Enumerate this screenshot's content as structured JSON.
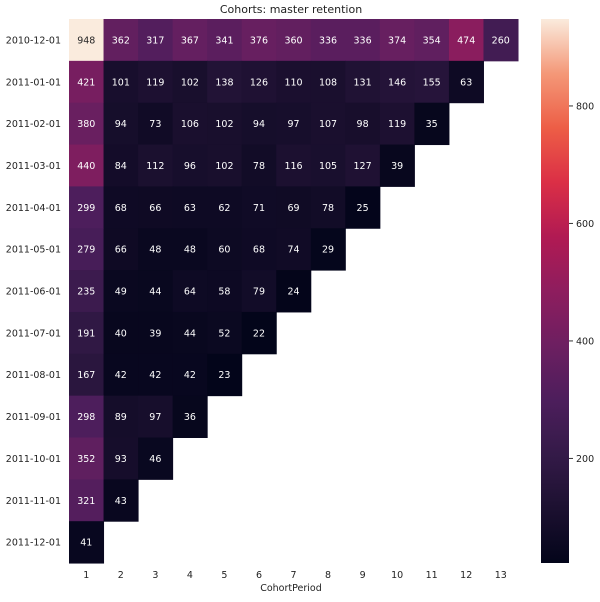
{
  "chart_data": {
    "type": "heatmap",
    "title": "Cohorts: master retention",
    "xlabel": "CohortPeriod",
    "ylabel": "",
    "x_categories": [
      "1",
      "2",
      "3",
      "4",
      "5",
      "6",
      "7",
      "8",
      "9",
      "10",
      "11",
      "12",
      "13"
    ],
    "y_categories": [
      "2010-12-01",
      "2011-01-01",
      "2011-02-01",
      "2011-03-01",
      "2011-04-01",
      "2011-05-01",
      "2011-06-01",
      "2011-07-01",
      "2011-08-01",
      "2011-09-01",
      "2011-10-01",
      "2011-11-01",
      "2011-12-01"
    ],
    "values": [
      [
        948,
        362,
        317,
        367,
        341,
        376,
        360,
        336,
        336,
        374,
        354,
        474,
        260
      ],
      [
        421,
        101,
        119,
        102,
        138,
        126,
        110,
        108,
        131,
        146,
        155,
        63,
        null
      ],
      [
        380,
        94,
        73,
        106,
        102,
        94,
        97,
        107,
        98,
        119,
        35,
        null,
        null
      ],
      [
        440,
        84,
        112,
        96,
        102,
        78,
        116,
        105,
        127,
        39,
        null,
        null,
        null
      ],
      [
        299,
        68,
        66,
        63,
        62,
        71,
        69,
        78,
        25,
        null,
        null,
        null,
        null
      ],
      [
        279,
        66,
        48,
        48,
        60,
        68,
        74,
        29,
        null,
        null,
        null,
        null,
        null
      ],
      [
        235,
        49,
        44,
        64,
        58,
        79,
        24,
        null,
        null,
        null,
        null,
        null,
        null
      ],
      [
        191,
        40,
        39,
        44,
        52,
        22,
        null,
        null,
        null,
        null,
        null,
        null,
        null
      ],
      [
        167,
        42,
        42,
        42,
        23,
        null,
        null,
        null,
        null,
        null,
        null,
        null,
        null
      ],
      [
        298,
        89,
        97,
        36,
        null,
        null,
        null,
        null,
        null,
        null,
        null,
        null,
        null
      ],
      [
        352,
        93,
        46,
        null,
        null,
        null,
        null,
        null,
        null,
        null,
        null,
        null,
        null
      ],
      [
        321,
        43,
        null,
        null,
        null,
        null,
        null,
        null,
        null,
        null,
        null,
        null,
        null
      ],
      [
        41,
        null,
        null,
        null,
        null,
        null,
        null,
        null,
        null,
        null,
        null,
        null,
        null
      ]
    ],
    "colorbar": {
      "colormap": "rocket",
      "vmin": 22,
      "vmax": 948,
      "ticks": [
        200,
        400,
        600,
        800
      ]
    },
    "annotations": "values shown in cells",
    "grid": false,
    "legend": "colorbar right"
  }
}
